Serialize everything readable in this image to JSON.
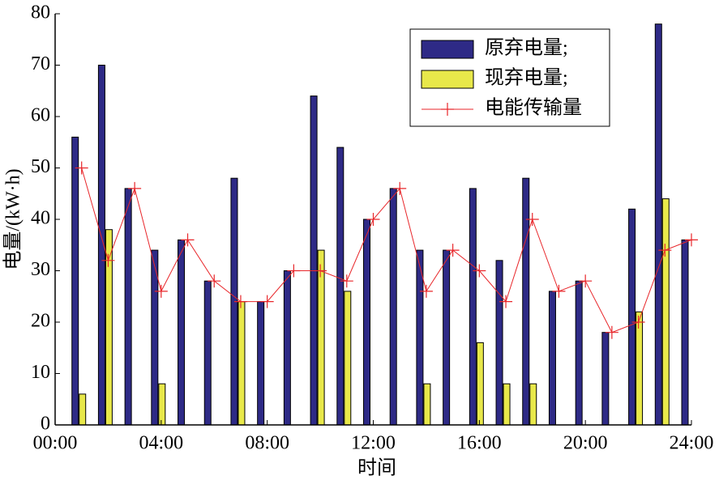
{
  "chart_data": {
    "type": "bar-line",
    "x_label": "时间",
    "y_label": "电量/(kW·h)",
    "x": [
      1,
      2,
      3,
      4,
      5,
      6,
      7,
      8,
      9,
      10,
      11,
      12,
      13,
      14,
      15,
      16,
      17,
      18,
      19,
      20,
      21,
      22,
      23,
      24
    ],
    "series": [
      {
        "name": "原弃电量;",
        "kind": "bar",
        "color": "#2e2a86",
        "values": [
          56,
          70,
          46,
          34,
          36,
          28,
          48,
          24,
          30,
          64,
          54,
          40,
          46,
          34,
          34,
          46,
          32,
          48,
          26,
          28,
          18,
          42,
          78,
          36
        ]
      },
      {
        "name": "现弃电量;",
        "kind": "bar",
        "color": "#e8e84a",
        "values": [
          6,
          38,
          0,
          8,
          0,
          0,
          24,
          0,
          0,
          34,
          26,
          0,
          0,
          8,
          0,
          16,
          8,
          8,
          0,
          0,
          0,
          22,
          44,
          0
        ]
      },
      {
        "name": "电能传输量",
        "kind": "line",
        "color": "#e8262a",
        "values": [
          50,
          32,
          46,
          26,
          36,
          28,
          24,
          24,
          30,
          30,
          28,
          40,
          46,
          26,
          34,
          30,
          24,
          40,
          26,
          28,
          18,
          20,
          34,
          36
        ]
      }
    ],
    "xlim": [
      0,
      24
    ],
    "xticks": [
      {
        "value": 0,
        "label": "00:00"
      },
      {
        "value": 4,
        "label": "04:00"
      },
      {
        "value": 8,
        "label": "08:00"
      },
      {
        "value": 12,
        "label": "12:00"
      },
      {
        "value": 16,
        "label": "16:00"
      },
      {
        "value": 20,
        "label": "20:00"
      },
      {
        "value": 24,
        "label": "24:00"
      }
    ],
    "ylim": [
      0,
      80
    ],
    "yticks": [
      0,
      10,
      20,
      30,
      40,
      50,
      60,
      70,
      80
    ],
    "legend": "upper-right"
  }
}
